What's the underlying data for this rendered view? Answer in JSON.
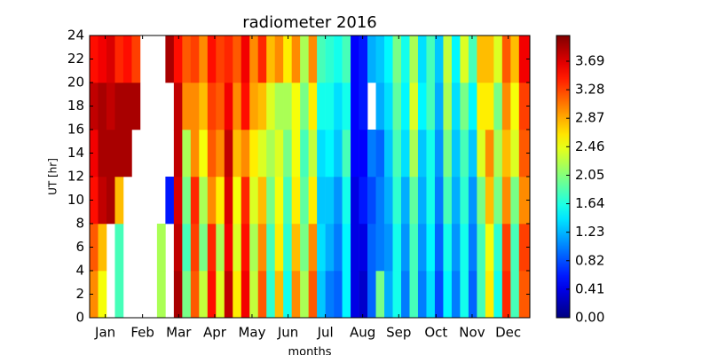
{
  "chart_data": {
    "type": "heatmap",
    "title": "radiometer 2016",
    "xlabel": "months",
    "ylabel": "UT [hr]",
    "colormap": "jet",
    "x": [
      0,
      7,
      14,
      21,
      28,
      35,
      42,
      49,
      56,
      63,
      70,
      77,
      84,
      91,
      98,
      105,
      112,
      119,
      126,
      133,
      140,
      147,
      154,
      161,
      168,
      175,
      182,
      189,
      196,
      203,
      210,
      217,
      224,
      231,
      238,
      245,
      252,
      259,
      266,
      273,
      280,
      287,
      294,
      301,
      308,
      315,
      322,
      329,
      336,
      343,
      350,
      357,
      366
    ],
    "y": [
      0,
      4,
      8,
      12,
      16,
      20,
      24
    ],
    "values": [
      [
        3.0,
        3.2,
        3.5,
        3.6,
        3.8,
        3.5
      ],
      [
        2.5,
        2.8,
        3.8,
        3.9,
        3.9,
        3.6
      ],
      [
        null,
        null,
        3.9,
        3.9,
        3.8,
        3.7
      ],
      [
        1.8,
        1.8,
        2.8,
        3.9,
        3.9,
        3.4
      ],
      [
        null,
        null,
        null,
        3.9,
        3.9,
        3.5
      ],
      [
        null,
        null,
        null,
        null,
        3.9,
        3.3
      ],
      [
        null,
        null,
        null,
        null,
        null,
        null
      ],
      [
        null,
        null,
        null,
        null,
        null,
        null
      ],
      [
        2.2,
        2.2,
        null,
        null,
        null,
        null
      ],
      [
        null,
        null,
        0.6,
        null,
        null,
        3.9
      ],
      [
        3.9,
        3.8,
        3.7,
        3.8,
        3.8,
        3.5
      ],
      [
        2.0,
        1.8,
        2.0,
        2.2,
        3.0,
        3.2
      ],
      [
        3.2,
        3.3,
        3.4,
        3.0,
        3.0,
        3.3
      ],
      [
        2.3,
        2.0,
        2.2,
        2.5,
        2.8,
        3.0
      ],
      [
        3.5,
        3.4,
        3.0,
        3.2,
        3.3,
        3.5
      ],
      [
        2.4,
        2.2,
        2.6,
        3.0,
        3.2,
        3.3
      ],
      [
        3.8,
        3.6,
        3.7,
        3.8,
        3.6,
        3.4
      ],
      [
        2.6,
        2.4,
        2.5,
        2.8,
        3.0,
        3.2
      ],
      [
        3.6,
        3.5,
        3.4,
        3.0,
        3.5,
        3.6
      ],
      [
        2.3,
        2.2,
        2.4,
        2.6,
        2.9,
        3.0
      ],
      [
        3.2,
        3.0,
        2.8,
        2.4,
        2.8,
        3.4
      ],
      [
        1.7,
        1.8,
        2.0,
        2.2,
        2.4,
        2.8
      ],
      [
        2.8,
        2.6,
        2.5,
        2.4,
        2.2,
        3.0
      ],
      [
        1.6,
        1.7,
        1.8,
        2.0,
        2.2,
        2.6
      ],
      [
        3.0,
        2.8,
        2.6,
        2.5,
        2.5,
        3.0
      ],
      [
        2.2,
        2.0,
        1.9,
        1.8,
        2.0,
        2.2
      ],
      [
        3.2,
        3.0,
        2.6,
        2.3,
        2.6,
        3.0
      ],
      [
        1.3,
        1.4,
        1.3,
        1.4,
        1.6,
        1.8
      ],
      [
        1.0,
        1.2,
        1.3,
        1.5,
        1.6,
        1.7
      ],
      [
        0.9,
        1.0,
        1.1,
        1.3,
        1.4,
        1.6
      ],
      [
        1.5,
        1.5,
        1.6,
        1.8,
        1.6,
        1.8
      ],
      [
        0.4,
        0.4,
        0.4,
        0.5,
        0.5,
        0.5
      ],
      [
        0.3,
        0.4,
        0.6,
        0.5,
        0.6,
        0.6
      ],
      [
        0.9,
        0.9,
        0.8,
        1.0,
        null,
        1.2
      ],
      [
        2.0,
        1.0,
        1.0,
        0.9,
        1.2,
        1.3
      ],
      [
        1.2,
        1.1,
        1.2,
        1.3,
        1.4,
        1.5
      ],
      [
        1.6,
        1.6,
        1.7,
        1.8,
        1.9,
        2.0
      ],
      [
        1.0,
        1.1,
        1.2,
        1.4,
        1.5,
        1.6
      ],
      [
        1.8,
        1.8,
        1.9,
        2.2,
        2.4,
        2.2
      ],
      [
        1.0,
        1.1,
        1.2,
        1.3,
        1.5,
        1.4
      ],
      [
        1.4,
        1.5,
        1.6,
        1.6,
        1.8,
        1.8
      ],
      [
        0.8,
        0.9,
        1.0,
        1.1,
        1.2,
        1.3
      ],
      [
        1.5,
        1.6,
        1.8,
        2.0,
        2.2,
        2.3
      ],
      [
        1.0,
        1.1,
        1.2,
        1.3,
        1.4,
        1.5
      ],
      [
        1.6,
        1.6,
        1.7,
        1.8,
        2.0,
        2.4
      ],
      [
        0.9,
        1.0,
        1.1,
        1.3,
        1.5,
        1.8
      ],
      [
        1.8,
        1.8,
        2.0,
        2.4,
        2.6,
        2.8
      ],
      [
        2.6,
        2.5,
        2.8,
        3.0,
        2.6,
        2.8
      ],
      [
        1.6,
        1.7,
        2.0,
        2.2,
        2.0,
        2.4
      ],
      [
        3.4,
        3.3,
        3.0,
        2.8,
        3.0,
        3.2
      ],
      [
        1.8,
        1.8,
        2.0,
        2.4,
        2.5,
        2.8
      ],
      [
        3.2,
        3.3,
        3.0,
        3.2,
        3.3,
        3.6
      ]
    ],
    "xlim": [
      0,
      366
    ],
    "ylim": [
      0,
      24
    ],
    "xticks": [
      {
        "value": 13,
        "label": "Jan"
      },
      {
        "value": 44,
        "label": "Feb"
      },
      {
        "value": 74,
        "label": "Mar"
      },
      {
        "value": 104,
        "label": "Apr"
      },
      {
        "value": 135,
        "label": "May"
      },
      {
        "value": 165,
        "label": "Jun"
      },
      {
        "value": 196,
        "label": "Jul"
      },
      {
        "value": 227,
        "label": "Aug"
      },
      {
        "value": 257,
        "label": "Sep"
      },
      {
        "value": 288,
        "label": "Oct"
      },
      {
        "value": 318,
        "label": "Nov"
      },
      {
        "value": 348,
        "label": "Dec"
      }
    ],
    "yticks": [
      0,
      2,
      4,
      6,
      8,
      10,
      12,
      14,
      16,
      18,
      20,
      22,
      24
    ],
    "clim": [
      0,
      4.06
    ],
    "cticks": [
      {
        "value": 0,
        "label": "0.00"
      },
      0.41,
      0.82,
      1.23,
      1.64,
      2.05,
      2.46,
      2.87,
      3.28,
      3.69
    ]
  }
}
